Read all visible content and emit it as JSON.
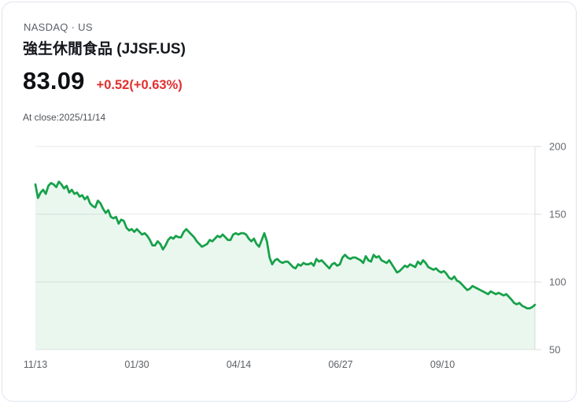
{
  "header": {
    "exchange": "NASDAQ · US",
    "title": "強生休閒食品 (JJSF.US)"
  },
  "quote": {
    "price": "83.09",
    "change": "+0.52(+0.63%)",
    "as_of": "At close:2025/11/14"
  },
  "colors": {
    "change_up_red": "#e03030",
    "line_green": "#17a14a",
    "area_green_fill": "rgba(23,161,74,0.09)",
    "gridline": "#e7e8ea",
    "axis_line": "#dcdee2"
  },
  "chart_data": {
    "type": "area",
    "description": "1-year daily close price line with light green area fill",
    "ylim": [
      50,
      200
    ],
    "y_ticks": [
      200,
      150,
      100,
      50
    ],
    "x_ticks": [
      {
        "label": "11/13",
        "pos": 0.0
      },
      {
        "label": "01/30",
        "pos": 0.2031
      },
      {
        "label": "04/14",
        "pos": 0.4071
      },
      {
        "label": "06/27",
        "pos": 0.611
      },
      {
        "label": "09/10",
        "pos": 0.815
      }
    ],
    "grid": true,
    "legend": false,
    "values": [
      172,
      162,
      166,
      168,
      165,
      171,
      173,
      172,
      170,
      174,
      172,
      169,
      171,
      166,
      168,
      165,
      166,
      163,
      164,
      161,
      163,
      158,
      156,
      155,
      160,
      158,
      154,
      151,
      153,
      148,
      147,
      148,
      143,
      146,
      145,
      140,
      138,
      139,
      137,
      139,
      137,
      135,
      136,
      134,
      131,
      127,
      127,
      130,
      128,
      124,
      127,
      131,
      133,
      132,
      134,
      133,
      133,
      137,
      139,
      137,
      135,
      133,
      130,
      128,
      126,
      127,
      128,
      131,
      130,
      132,
      134,
      133,
      135,
      133,
      131,
      131,
      135,
      136,
      135,
      136,
      136,
      135,
      132,
      130,
      132,
      128,
      126,
      131,
      136,
      130,
      118,
      113,
      116,
      117,
      115,
      114,
      115,
      115,
      113,
      111,
      110,
      113,
      112,
      114,
      113,
      113,
      114,
      112,
      117,
      115,
      116,
      114,
      112,
      110,
      113,
      114,
      112,
      113,
      118,
      120,
      118,
      117,
      118,
      118,
      117,
      116,
      114,
      119,
      116,
      115,
      120,
      118,
      119,
      116,
      115,
      114,
      116,
      113,
      110,
      107,
      108,
      110,
      112,
      111,
      113,
      112,
      111,
      115,
      113,
      116,
      114,
      111,
      110,
      109,
      110,
      108,
      107,
      108,
      106,
      103,
      102,
      104,
      101,
      100,
      98,
      96,
      94,
      95,
      97,
      96,
      95,
      94,
      93,
      92,
      91,
      93,
      92,
      91,
      92,
      91,
      90,
      91,
      89,
      87,
      84.5,
      83.5,
      84.5,
      82.5,
      81.5,
      80.5,
      80.5,
      81.5,
      83.1
    ]
  }
}
